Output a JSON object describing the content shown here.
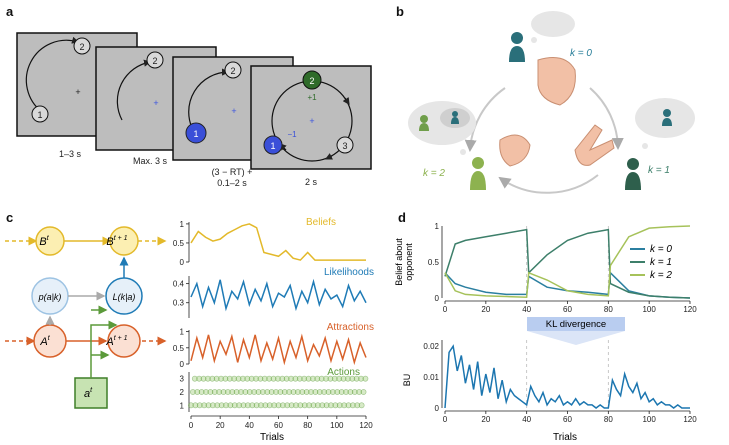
{
  "panel_a": {
    "label": "a",
    "screens": [
      {
        "caption": "1–3 s"
      },
      {
        "caption": "Max. 3 s"
      },
      {
        "caption_line1": "(3 − RT) +",
        "caption_line2": "0.1–2 s"
      },
      {
        "caption": "2 s"
      }
    ],
    "node_labels": [
      "1",
      "2",
      "3"
    ],
    "fixation": "+",
    "feedback_plus": "+1",
    "feedback_minus": "−1"
  },
  "panel_b": {
    "label": "b",
    "k0": "k = 0",
    "k1": "k = 1",
    "k2": "k = 2"
  },
  "panel_c": {
    "label": "c",
    "nodes": {
      "b_t": "B",
      "b_t1": "B",
      "p_ak": "p(a|k)",
      "l_ka": "L(k|a)",
      "a_t": "A",
      "a_t1": "A",
      "act": "a"
    },
    "sup_t": "t",
    "sup_t1": "t + 1",
    "xlabel": "Trials",
    "series_labels": {
      "beliefs": "Beliefs",
      "likelihoods": "Likelihoods",
      "attractions": "Attractions",
      "actions": "Actions"
    },
    "colors": {
      "beliefs": "#e3b92a",
      "likelihoods": "#1f7bb6",
      "attractions": "#d8612a",
      "actions": "#79b845"
    }
  },
  "panel_d": {
    "label": "d",
    "top_ylabel_line1": "Belief about",
    "top_ylabel_line2": "opponent",
    "legend": [
      "k = 0",
      "k = 1",
      "k = 2"
    ],
    "kl_label": "KL divergence",
    "bottom_ylabel": "BU",
    "xlabel": "Trials",
    "colors": {
      "k0": "#2b7fa0",
      "k1": "#3d7f6a",
      "k2": "#a6c25a",
      "bu": "#1c76b0"
    }
  },
  "chart_data": [
    {
      "type": "line",
      "id": "c-beliefs",
      "name": "Beliefs",
      "x": [
        0,
        5,
        10,
        15,
        20,
        25,
        30,
        35,
        40,
        45,
        50,
        55,
        60,
        65,
        70,
        75,
        80,
        85,
        90,
        95,
        100,
        105,
        110,
        115,
        120
      ],
      "y": [
        0.5,
        0.8,
        0.65,
        0.55,
        0.6,
        0.75,
        0.85,
        0.95,
        1.0,
        0.9,
        0.25,
        0.2,
        0.15,
        0.3,
        0.1,
        0.05,
        0.25,
        0.05,
        0.05,
        0.05,
        0.05,
        0.05,
        0.05,
        0.05,
        0.05
      ],
      "yticks": [
        0,
        0.5,
        1
      ],
      "xlim": [
        0,
        120
      ]
    },
    {
      "type": "line",
      "id": "c-likelihoods",
      "name": "Likelihoods",
      "x": [
        0,
        4,
        8,
        12,
        16,
        20,
        24,
        28,
        32,
        36,
        40,
        44,
        48,
        52,
        56,
        60,
        64,
        68,
        72,
        76,
        80,
        84,
        88,
        92,
        96,
        100,
        104,
        108,
        112,
        116,
        120
      ],
      "y": [
        0.33,
        0.4,
        0.28,
        0.38,
        0.3,
        0.42,
        0.27,
        0.36,
        0.32,
        0.41,
        0.29,
        0.37,
        0.31,
        0.4,
        0.28,
        0.35,
        0.33,
        0.39,
        0.27,
        0.36,
        0.3,
        0.41,
        0.29,
        0.37,
        0.32,
        0.34,
        0.28,
        0.39,
        0.31,
        0.36,
        0.3
      ],
      "yticks": [
        0.3,
        0.4
      ],
      "ylim": [
        0.22,
        0.44
      ],
      "xlim": [
        0,
        120
      ]
    },
    {
      "type": "line",
      "id": "c-attractions",
      "name": "Attractions",
      "x": [
        0,
        4,
        8,
        12,
        16,
        20,
        24,
        28,
        32,
        36,
        40,
        44,
        48,
        52,
        56,
        60,
        64,
        68,
        72,
        76,
        80,
        84,
        88,
        92,
        96,
        100,
        104,
        108,
        112,
        116,
        120
      ],
      "y": [
        0.1,
        0.8,
        0.2,
        0.9,
        0.1,
        0.7,
        0.3,
        0.85,
        0.05,
        0.75,
        0.2,
        0.9,
        0.1,
        0.65,
        0.15,
        0.8,
        0.05,
        0.7,
        0.2,
        0.85,
        0.1,
        0.6,
        0.25,
        0.8,
        0.1,
        0.7,
        0.15,
        0.75,
        0.05,
        0.65,
        0.2
      ],
      "yticks": [
        0,
        0.5,
        1
      ],
      "xlim": [
        0,
        120
      ]
    },
    {
      "type": "scatter",
      "id": "c-actions",
      "name": "Actions",
      "yticks": [
        1,
        2,
        3
      ],
      "xlim": [
        0,
        120
      ]
    },
    {
      "type": "line",
      "id": "d-beliefs",
      "series": [
        {
          "name": "k = 0",
          "x": [
            0,
            5,
            10,
            20,
            30,
            40,
            41,
            50,
            60,
            70,
            80,
            81,
            90,
            100,
            110,
            120
          ],
          "y": [
            0.35,
            0.2,
            0.15,
            0.08,
            0.05,
            0.05,
            0.3,
            0.15,
            0.1,
            0.08,
            0.05,
            0.35,
            0.1,
            0.03,
            0.01,
            0.0
          ]
        },
        {
          "name": "k = 1",
          "x": [
            0,
            5,
            10,
            20,
            30,
            40,
            41,
            50,
            60,
            70,
            80,
            81,
            90,
            100,
            110,
            120
          ],
          "y": [
            0.3,
            0.75,
            0.8,
            0.85,
            0.9,
            0.95,
            0.35,
            0.6,
            0.8,
            0.9,
            0.95,
            0.2,
            0.08,
            0.03,
            0.01,
            0.0
          ]
        },
        {
          "name": "k = 2",
          "x": [
            0,
            5,
            10,
            20,
            30,
            40,
            41,
            50,
            60,
            70,
            80,
            81,
            90,
            100,
            110,
            120
          ],
          "y": [
            0.35,
            0.1,
            0.05,
            0.03,
            0.02,
            0.01,
            0.35,
            0.25,
            0.1,
            0.05,
            0.03,
            0.45,
            0.85,
            0.97,
            0.99,
            1.0
          ]
        }
      ],
      "yticks": [
        0,
        0.5,
        1
      ],
      "xticks": [
        0,
        20,
        40,
        60,
        80,
        100,
        120
      ],
      "xlim": [
        0,
        120
      ],
      "ylim": [
        0,
        1
      ]
    },
    {
      "type": "line",
      "id": "d-bu",
      "series": [
        {
          "name": "BU",
          "x": [
            0,
            2,
            4,
            6,
            8,
            10,
            12,
            14,
            16,
            18,
            20,
            22,
            24,
            26,
            28,
            30,
            32,
            34,
            36,
            38,
            40,
            42,
            44,
            46,
            48,
            50,
            52,
            54,
            56,
            58,
            60,
            62,
            64,
            66,
            68,
            70,
            72,
            74,
            76,
            78,
            80,
            82,
            84,
            86,
            88,
            90,
            92,
            94,
            96,
            98,
            100,
            102,
            104,
            106,
            108,
            110,
            112,
            114,
            116,
            118,
            120
          ],
          "y": [
            0.0,
            0.018,
            0.02,
            0.012,
            0.017,
            0.008,
            0.014,
            0.006,
            0.015,
            0.004,
            0.011,
            0.005,
            0.013,
            0.003,
            0.009,
            0.002,
            0.006,
            0.004,
            0.003,
            0.002,
            0.001,
            0.007,
            0.004,
            0.002,
            0.005,
            0.001,
            0.003,
            0.002,
            0.004,
            0.001,
            0.002,
            0.001,
            0.003,
            0.001,
            0.002,
            0.001,
            0.001,
            0.0,
            0.001,
            0.0,
            0.0,
            0.009,
            0.006,
            0.004,
            0.011,
            0.007,
            0.005,
            0.008,
            0.003,
            0.005,
            0.002,
            0.003,
            0.001,
            0.002,
            0.001,
            0.001,
            0.0,
            0.001,
            0.0,
            0.0,
            0.0
          ]
        }
      ],
      "yticks": [
        0,
        0.01,
        0.02
      ],
      "xticks": [
        0,
        20,
        40,
        60,
        80,
        100,
        120
      ],
      "xlim": [
        0,
        120
      ],
      "ylim": [
        0,
        0.022
      ]
    }
  ]
}
